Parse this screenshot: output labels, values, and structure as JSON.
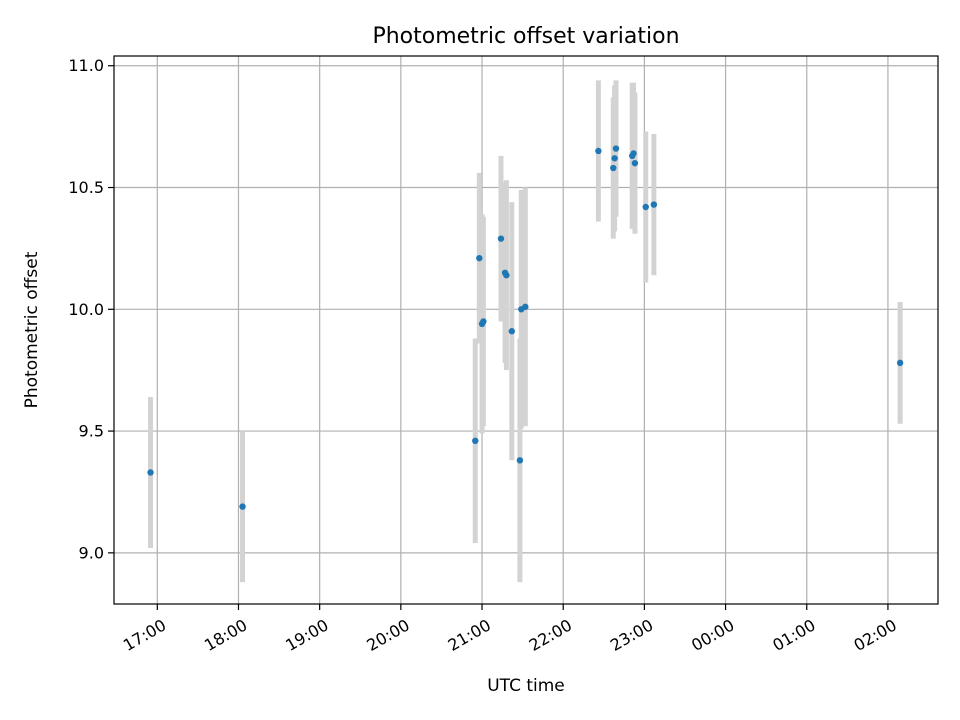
{
  "chart_data": {
    "type": "scatter",
    "title": "Photometric offset variation",
    "xlabel": "UTC time",
    "ylabel": "Photometric offset",
    "grid": true,
    "xlim": [
      "16:28",
      "02:37"
    ],
    "ylim": [
      8.79,
      11.04
    ],
    "x_ticks": [
      "17:00",
      "18:00",
      "19:00",
      "20:00",
      "21:00",
      "22:00",
      "23:00",
      "00:00",
      "01:00",
      "02:00"
    ],
    "y_ticks": [
      "9.0",
      "9.5",
      "10.0",
      "10.5",
      "11.0"
    ],
    "point_color": "#1f77b4",
    "errorbar_color": "#d3d3d3",
    "points": [
      {
        "x": "16:55",
        "y": 9.33,
        "err": 0.31
      },
      {
        "x": "18:03",
        "y": 9.19,
        "err": 0.31
      },
      {
        "x": "20:55",
        "y": 9.46,
        "err": 0.42
      },
      {
        "x": "20:58",
        "y": 10.21,
        "err": 0.35
      },
      {
        "x": "21:00",
        "y": 9.94,
        "err": 0.45
      },
      {
        "x": "21:01",
        "y": 9.95,
        "err": 0.43
      },
      {
        "x": "21:14",
        "y": 10.29,
        "err": 0.34
      },
      {
        "x": "21:17",
        "y": 10.15,
        "err": 0.37
      },
      {
        "x": "21:18",
        "y": 10.14,
        "err": 0.39
      },
      {
        "x": "21:22",
        "y": 9.91,
        "err": 0.53
      },
      {
        "x": "21:28",
        "y": 9.38,
        "err": 0.5
      },
      {
        "x": "21:29",
        "y": 10.0,
        "err": 0.49
      },
      {
        "x": "21:32",
        "y": 10.01,
        "err": 0.49
      },
      {
        "x": "22:26",
        "y": 10.65,
        "err": 0.29
      },
      {
        "x": "22:37",
        "y": 10.58,
        "err": 0.29
      },
      {
        "x": "22:38",
        "y": 10.62,
        "err": 0.3
      },
      {
        "x": "22:39",
        "y": 10.66,
        "err": 0.28
      },
      {
        "x": "22:51",
        "y": 10.63,
        "err": 0.3
      },
      {
        "x": "22:52",
        "y": 10.64,
        "err": 0.29
      },
      {
        "x": "22:53",
        "y": 10.6,
        "err": 0.29
      },
      {
        "x": "23:01",
        "y": 10.42,
        "err": 0.31
      },
      {
        "x": "23:07",
        "y": 10.43,
        "err": 0.29
      },
      {
        "x": "02:09",
        "y": 9.78,
        "err": 0.25
      }
    ]
  }
}
